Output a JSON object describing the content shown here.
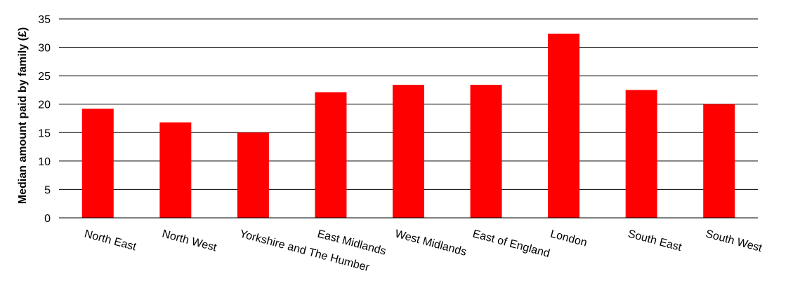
{
  "chart_data": {
    "type": "bar",
    "title": "",
    "xlabel": "",
    "ylabel": "Median amount paid by family (£)",
    "ylim": [
      0,
      35
    ],
    "yticks": [
      "0",
      "5",
      "10",
      "15",
      "20",
      "25",
      "30",
      "35"
    ],
    "grid": true,
    "legend": "none",
    "bar_color": "#ff0000",
    "categories": [
      "North East",
      "North West",
      "Yorkshire and The Humber",
      "East Midlands",
      "West Midlands",
      "East of England",
      "London",
      "South East",
      "South West"
    ],
    "values": [
      19.2,
      16.8,
      15.0,
      22.1,
      23.4,
      23.4,
      32.4,
      22.5,
      20.0
    ]
  }
}
